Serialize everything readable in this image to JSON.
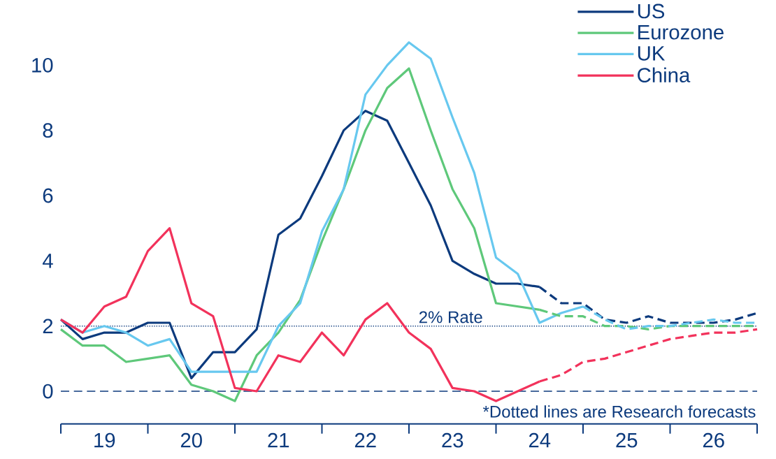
{
  "chart_data": {
    "type": "line",
    "x": [
      19,
      19.25,
      19.5,
      19.75,
      20,
      20.25,
      20.5,
      20.75,
      21,
      21.25,
      21.5,
      21.75,
      22,
      22.25,
      22.5,
      22.75,
      23,
      23.25,
      23.5,
      23.75,
      24,
      24.25,
      24.5,
      24.75,
      25,
      25.25,
      25.5,
      25.75,
      26,
      26.25,
      26.5,
      26.75,
      27
    ],
    "series": [
      {
        "name": "US",
        "color": "#0c3a7d",
        "line_style": "solid",
        "values": [
          2.2,
          1.6,
          1.8,
          1.8,
          2.1,
          2.1,
          0.4,
          1.2,
          1.2,
          1.9,
          4.8,
          5.3,
          6.6,
          8.0,
          8.6,
          8.3,
          7.0,
          5.7,
          4.0,
          3.6,
          3.3,
          3.3,
          3.2,
          null,
          null,
          null,
          null,
          null,
          null,
          null,
          null,
          null,
          null
        ]
      },
      {
        "name": "Eurozone",
        "color": "#5ec87a",
        "line_style": "solid",
        "values": [
          1.9,
          1.4,
          1.4,
          0.9,
          1.0,
          1.1,
          0.2,
          0.0,
          -0.3,
          1.1,
          1.8,
          2.8,
          4.6,
          6.2,
          8.0,
          9.3,
          9.9,
          8.0,
          6.2,
          5.0,
          2.7,
          2.6,
          2.5,
          null,
          null,
          null,
          null,
          null,
          null,
          null,
          null,
          null,
          null
        ]
      },
      {
        "name": "UK",
        "color": "#67c8ef",
        "line_style": "solid",
        "values": [
          2.2,
          1.8,
          2.0,
          1.8,
          1.4,
          1.6,
          0.6,
          0.6,
          0.6,
          0.6,
          2.0,
          2.7,
          4.9,
          6.2,
          9.1,
          10.0,
          10.7,
          10.2,
          8.4,
          6.7,
          4.1,
          3.6,
          2.1,
          2.4,
          2.6,
          null,
          null,
          null,
          null,
          null,
          null,
          null,
          null
        ]
      },
      {
        "name": "China",
        "color": "#f2325b",
        "line_style": "solid",
        "values": [
          2.2,
          1.8,
          2.6,
          2.9,
          4.3,
          5.0,
          2.7,
          2.3,
          0.1,
          0.0,
          1.1,
          0.9,
          1.8,
          1.1,
          2.2,
          2.7,
          1.8,
          1.3,
          0.1,
          0.0,
          -0.3,
          0.0,
          0.3,
          null,
          null,
          null,
          null,
          null,
          null,
          null,
          null,
          null,
          null
        ]
      },
      {
        "color": "#0c3a7d",
        "line_style": "dashed",
        "values": [
          null,
          null,
          null,
          null,
          null,
          null,
          null,
          null,
          null,
          null,
          null,
          null,
          null,
          null,
          null,
          null,
          null,
          null,
          null,
          null,
          null,
          null,
          3.2,
          2.7,
          2.7,
          2.2,
          2.1,
          2.3,
          2.1,
          2.1,
          2.1,
          2.2,
          2.4
        ]
      },
      {
        "color": "#5ec87a",
        "line_style": "dashed",
        "values": [
          null,
          null,
          null,
          null,
          null,
          null,
          null,
          null,
          null,
          null,
          null,
          null,
          null,
          null,
          null,
          null,
          null,
          null,
          null,
          null,
          null,
          null,
          2.5,
          2.3,
          2.3,
          2.0,
          2.0,
          1.9,
          2.0,
          2.0,
          2.0,
          2.0,
          2.0
        ]
      },
      {
        "color": "#67c8ef",
        "line_style": "dashed",
        "values": [
          null,
          null,
          null,
          null,
          null,
          null,
          null,
          null,
          null,
          null,
          null,
          null,
          null,
          null,
          null,
          null,
          null,
          null,
          null,
          null,
          null,
          null,
          null,
          null,
          2.6,
          2.2,
          1.9,
          2.0,
          2.0,
          2.1,
          2.2,
          2.1,
          2.1
        ]
      },
      {
        "color": "#f2325b",
        "line_style": "dashed",
        "values": [
          null,
          null,
          null,
          null,
          null,
          null,
          null,
          null,
          null,
          null,
          null,
          null,
          null,
          null,
          null,
          null,
          null,
          null,
          null,
          null,
          null,
          null,
          0.3,
          0.5,
          0.9,
          1.0,
          1.2,
          1.4,
          1.6,
          1.7,
          1.8,
          1.8,
          1.9
        ]
      }
    ],
    "xlim": [
      19,
      27
    ],
    "xticks": [
      {
        "value": 19,
        "label": null
      },
      {
        "value": 19.5,
        "label": "19"
      },
      {
        "value": 20,
        "label": null
      },
      {
        "value": 20.5,
        "label": "20"
      },
      {
        "value": 21,
        "label": null
      },
      {
        "value": 21.5,
        "label": "21"
      },
      {
        "value": 22,
        "label": null
      },
      {
        "value": 22.5,
        "label": "22"
      },
      {
        "value": 23,
        "label": null
      },
      {
        "value": 23.5,
        "label": "23"
      },
      {
        "value": 24,
        "label": null
      },
      {
        "value": 24.5,
        "label": "24"
      },
      {
        "value": 25,
        "label": null
      },
      {
        "value": 25.5,
        "label": "25"
      },
      {
        "value": 26,
        "label": null
      },
      {
        "value": 26.5,
        "label": "26"
      },
      {
        "value": 27,
        "label": null
      }
    ],
    "ylim": [
      -1,
      12
    ],
    "yticks": [
      0,
      2,
      4,
      6,
      8,
      10
    ],
    "ref_lines": [
      {
        "axis": "y",
        "value": 2,
        "label": "2% Rate",
        "color": "#0c3a7d",
        "line_style": "dotted"
      },
      {
        "axis": "y",
        "value": 0,
        "color": "#0c3a7d",
        "line_style": "dashed"
      }
    ],
    "annotations": [
      "*Dotted lines are Research forecasts"
    ],
    "grid": false,
    "legend": "top right"
  }
}
